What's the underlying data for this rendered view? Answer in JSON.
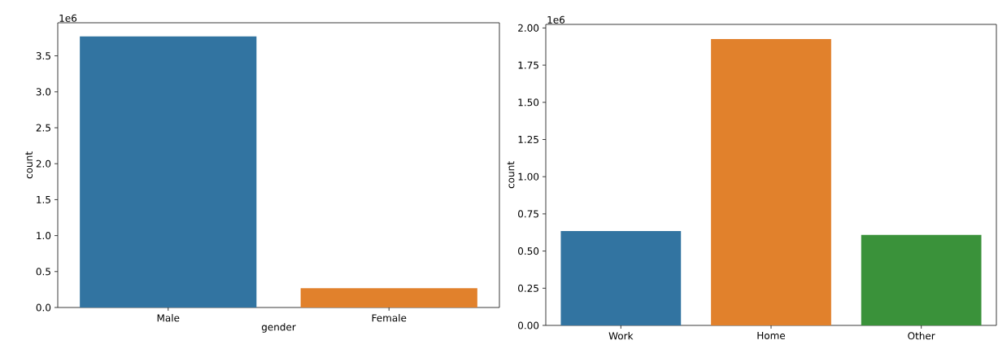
{
  "chart_data": [
    {
      "type": "bar",
      "categories": [
        "Male",
        "Female"
      ],
      "values": [
        3.77,
        0.27
      ],
      "colors": [
        "#3274a1",
        "#e1812c"
      ],
      "xlabel": "gender",
      "ylabel": "count",
      "annotations": [
        "1e6"
      ],
      "ylim": [
        0,
        3.96
      ],
      "yticks": [
        {
          "value": 0,
          "label": "0.0"
        },
        0.5,
        {
          "value": 1,
          "label": "1.0"
        },
        1.5,
        {
          "value": 2,
          "label": "2.0"
        },
        2.5,
        {
          "value": 3,
          "label": "3.0"
        },
        3.5
      ]
    },
    {
      "type": "bar",
      "categories": [
        "Work",
        "Home",
        "Other"
      ],
      "values": [
        0.634,
        1.926,
        0.608
      ],
      "colors": [
        "#3274a1",
        "#e1812c",
        "#3a923a"
      ],
      "ylabel": "count",
      "annotations": [
        "1e6"
      ],
      "ylim": [
        0,
        2.024
      ],
      "yticks": [
        {
          "value": 0,
          "label": "0.00"
        },
        {
          "value": 0.25,
          "label": "0.25"
        },
        {
          "value": 0.5,
          "label": "0.50"
        },
        {
          "value": 0.75,
          "label": "0.75"
        },
        {
          "value": 1,
          "label": "1.00"
        },
        {
          "value": 1.25,
          "label": "1.25"
        },
        {
          "value": 1.5,
          "label": "1.50"
        },
        {
          "value": 1.75,
          "label": "1.75"
        },
        {
          "value": 2,
          "label": "2.00"
        }
      ]
    }
  ]
}
